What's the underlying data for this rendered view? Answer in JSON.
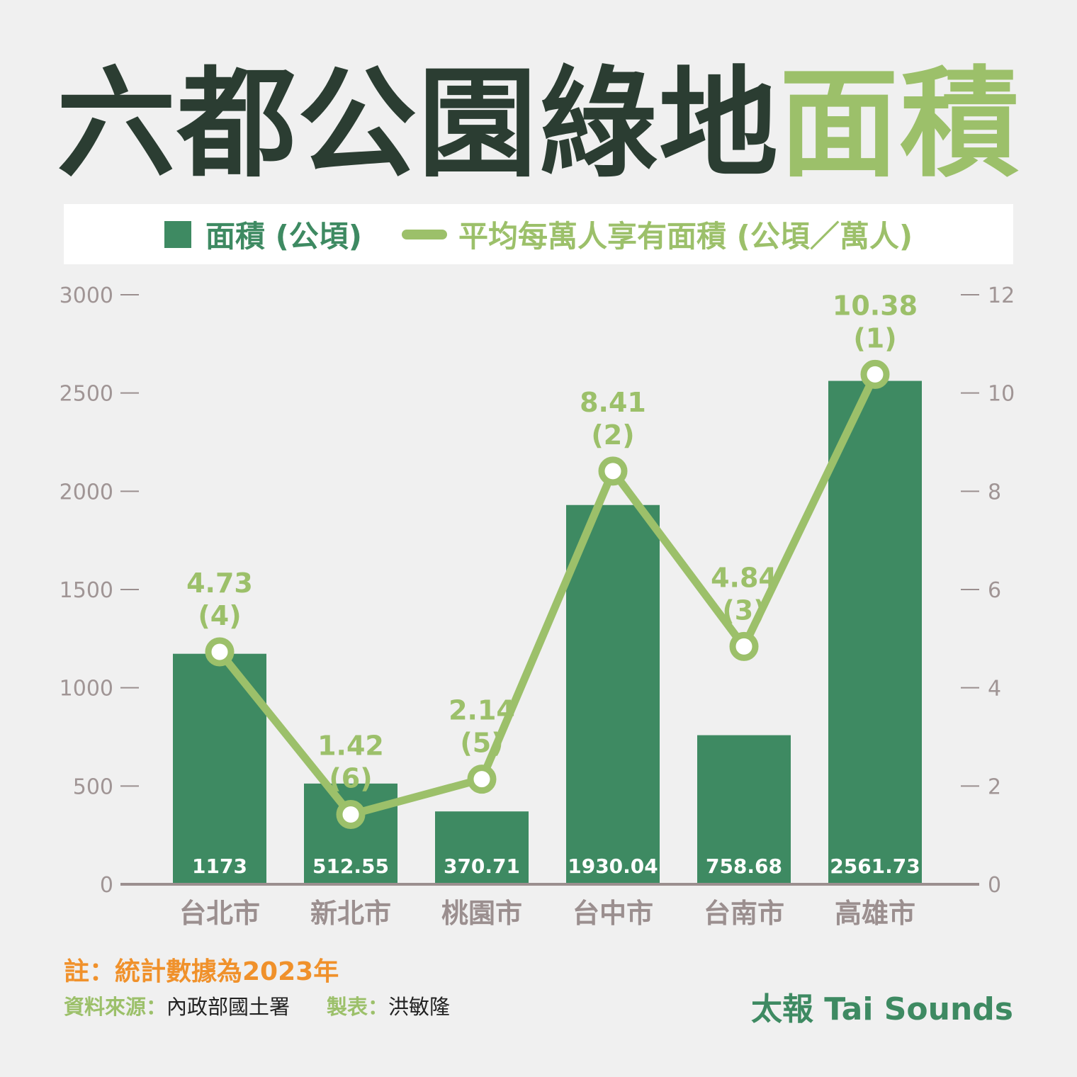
{
  "title": {
    "part1": "六都公園綠地",
    "part2": "面積"
  },
  "legend": {
    "bar_label": "面積 (公頃)",
    "line_label": "平均每萬人享有面積 (公頃／萬人)"
  },
  "chart_data": {
    "type": "bar",
    "categories": [
      "台北市",
      "新北市",
      "桃園市",
      "台中市",
      "台南市",
      "高雄市"
    ],
    "series": [
      {
        "name": "面積 (公頃)",
        "type": "bar",
        "axis": "left",
        "values": [
          1173,
          512.55,
          370.71,
          1930.04,
          758.68,
          2561.73
        ],
        "labels": [
          "1173",
          "512.55",
          "370.71",
          "1930.04",
          "758.68",
          "2561.73"
        ],
        "color": "#3e8a62"
      },
      {
        "name": "平均每萬人享有面積 (公頃／萬人)",
        "type": "line",
        "axis": "right",
        "values": [
          4.73,
          1.42,
          2.14,
          8.41,
          4.84,
          10.38
        ],
        "labels": [
          "4.73",
          "1.42",
          "2.14",
          "8.41",
          "4.84",
          "10.38"
        ],
        "ranks": [
          "(4)",
          "(6)",
          "(5)",
          "(2)",
          "(3)",
          "(1)"
        ],
        "color": "#9cc06a"
      }
    ],
    "left_axis": {
      "ylim": [
        0,
        3000
      ],
      "ticks": [
        0,
        500,
        1000,
        1500,
        2000,
        2500,
        3000
      ]
    },
    "right_axis": {
      "ylim": [
        0,
        12
      ],
      "ticks": [
        0,
        2,
        4,
        6,
        8,
        10,
        12
      ]
    },
    "colors": {
      "axis": "#9b8f8f",
      "tick_text": "#a09595",
      "category_text": "#9b8f8f",
      "bar_label_text": "#ffffff"
    }
  },
  "footer": {
    "note": "註：統計數據為2023年",
    "source_label": "資料來源：",
    "source_value": "內政部國土署",
    "maker_label": "製表：",
    "maker_value": "洪敏隆",
    "brand": "太報 Tai Sounds"
  }
}
